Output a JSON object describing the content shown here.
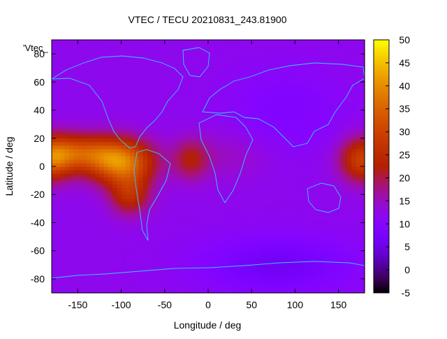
{
  "chart_data": {
    "type": "heatmap",
    "title": "VTEC / TECU 20210831_243.81900",
    "xlabel": "Longitude / deg",
    "ylabel": "Latitude / deg",
    "legend_label": "'Vtec_",
    "xlim": [
      -180,
      180
    ],
    "ylim": [
      -90,
      90
    ],
    "xticks": [
      -150,
      -100,
      -50,
      0,
      50,
      100,
      150
    ],
    "yticks": [
      -80,
      -60,
      -40,
      -20,
      0,
      20,
      40,
      60,
      80
    ],
    "colorbar": {
      "min": -5,
      "max": 50,
      "ticks": [
        -5,
        0,
        5,
        10,
        15,
        20,
        25,
        30,
        35,
        40,
        45,
        50
      ]
    },
    "background_level": 12,
    "features": [
      {
        "name": "south-america-crest",
        "lon": -100,
        "lat": 3,
        "sigma_lon": 26,
        "sigma_lat": 11,
        "value": 25
      },
      {
        "name": "south-america-south",
        "lon": -90,
        "lat": -20,
        "sigma_lon": 16,
        "sigma_lat": 10,
        "value": 13
      },
      {
        "name": "east-pacific-crest",
        "lon": -150,
        "lat": 10,
        "sigma_lon": 32,
        "sigma_lat": 9,
        "value": 18
      },
      {
        "name": "atlantic-crest",
        "lon": -20,
        "lat": 5,
        "sigma_lon": 14,
        "sigma_lat": 10,
        "value": 9
      },
      {
        "name": "west-pacific-crest",
        "lon": 178,
        "lat": 5,
        "sigma_lon": 18,
        "sigma_lat": 11,
        "value": 18
      },
      {
        "name": "west-pacific-wrap",
        "lon": -182,
        "lat": 5,
        "sigma_lon": 18,
        "sigma_lat": 11,
        "value": 18
      },
      {
        "name": "africa-band",
        "lon": 20,
        "lat": 8,
        "sigma_lon": 35,
        "sigma_lat": 12,
        "value": 3
      },
      {
        "name": "asia-depletion",
        "lon": 90,
        "lat": 40,
        "sigma_lon": 45,
        "sigma_lat": 20,
        "value": -3
      },
      {
        "name": "southern-ocean-low",
        "lon": 80,
        "lat": -70,
        "sigma_lon": 60,
        "sigma_lat": 14,
        "value": -6
      }
    ]
  }
}
